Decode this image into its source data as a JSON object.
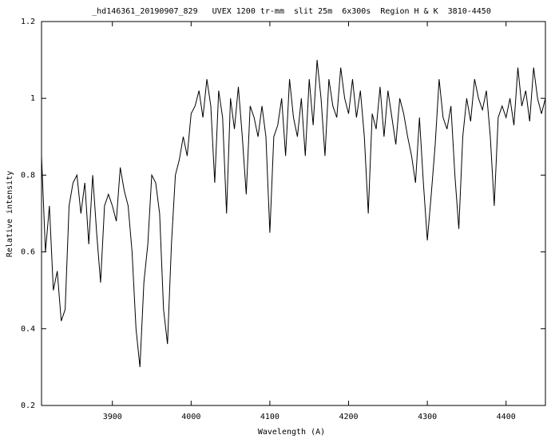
{
  "chart_data": {
    "type": "line",
    "title": "_hd146361_20190907_829   UVEX 1200 tr-mm  slit 25m  6x300s  Region H & K  3810-4450",
    "x_label": "Wavelength (A)",
    "y_label": "Relative intensity",
    "xlim": [
      3810,
      4450
    ],
    "ylim": [
      0.2,
      1.2
    ],
    "xticks": [
      3900,
      4000,
      4100,
      4200,
      4300,
      4400
    ],
    "yticks": [
      0.2,
      0.4,
      0.6,
      0.8,
      1,
      1.2
    ],
    "x": [
      3810,
      3815,
      3820,
      3825,
      3830,
      3835,
      3840,
      3845,
      3850,
      3855,
      3860,
      3865,
      3870,
      3875,
      3880,
      3885,
      3890,
      3895,
      3900,
      3905,
      3910,
      3915,
      3920,
      3925,
      3930,
      3935,
      3940,
      3945,
      3950,
      3955,
      3960,
      3965,
      3970,
      3975,
      3980,
      3985,
      3990,
      3995,
      4000,
      4005,
      4010,
      4015,
      4020,
      4025,
      4030,
      4035,
      4040,
      4045,
      4050,
      4055,
      4060,
      4065,
      4070,
      4075,
      4080,
      4085,
      4090,
      4095,
      4100,
      4105,
      4110,
      4115,
      4120,
      4125,
      4130,
      4135,
      4140,
      4145,
      4150,
      4155,
      4160,
      4165,
      4170,
      4175,
      4180,
      4185,
      4190,
      4195,
      4200,
      4205,
      4210,
      4215,
      4220,
      4225,
      4230,
      4235,
      4240,
      4245,
      4250,
      4255,
      4260,
      4265,
      4270,
      4275,
      4280,
      4285,
      4290,
      4295,
      4300,
      4305,
      4310,
      4315,
      4320,
      4325,
      4330,
      4335,
      4340,
      4345,
      4350,
      4355,
      4360,
      4365,
      4370,
      4375,
      4380,
      4385,
      4390,
      4395,
      4400,
      4405,
      4410,
      4415,
      4420,
      4425,
      4430,
      4435,
      4440,
      4445,
      4450
    ],
    "series": [
      {
        "color": "#000000",
        "values": [
          0.85,
          0.6,
          0.72,
          0.5,
          0.55,
          0.42,
          0.45,
          0.72,
          0.78,
          0.8,
          0.7,
          0.78,
          0.62,
          0.8,
          0.65,
          0.52,
          0.72,
          0.75,
          0.72,
          0.68,
          0.82,
          0.76,
          0.72,
          0.6,
          0.4,
          0.3,
          0.52,
          0.62,
          0.8,
          0.78,
          0.7,
          0.45,
          0.36,
          0.62,
          0.8,
          0.84,
          0.9,
          0.85,
          0.96,
          0.98,
          1.02,
          0.95,
          1.05,
          0.98,
          0.78,
          1.02,
          0.95,
          0.7,
          1.0,
          0.92,
          1.03,
          0.9,
          0.75,
          0.98,
          0.95,
          0.9,
          0.98,
          0.9,
          0.65,
          0.9,
          0.93,
          1.0,
          0.85,
          1.05,
          0.95,
          0.9,
          1.0,
          0.85,
          1.05,
          0.93,
          1.1,
          1.0,
          0.85,
          1.05,
          0.98,
          0.95,
          1.08,
          1.0,
          0.96,
          1.05,
          0.95,
          1.02,
          0.9,
          0.7,
          0.96,
          0.92,
          1.03,
          0.9,
          1.02,
          0.95,
          0.88,
          1.0,
          0.96,
          0.9,
          0.85,
          0.78,
          0.95,
          0.78,
          0.63,
          0.75,
          0.88,
          1.05,
          0.95,
          0.92,
          0.98,
          0.8,
          0.66,
          0.9,
          1.0,
          0.94,
          1.05,
          1.0,
          0.97,
          1.02,
          0.9,
          0.72,
          0.95,
          0.98,
          0.95,
          1.0,
          0.93,
          1.08,
          0.98,
          1.02,
          0.94,
          1.08,
          1.0,
          0.96,
          1.0
        ]
      }
    ]
  }
}
